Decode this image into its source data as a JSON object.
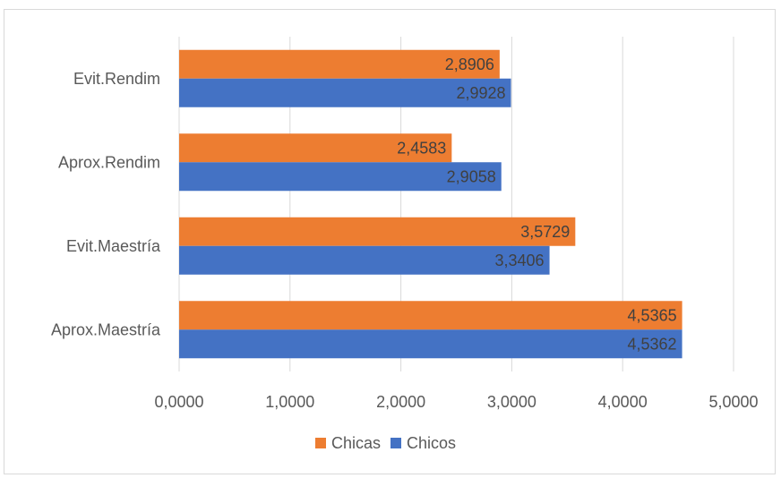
{
  "chart_data": {
    "type": "bar",
    "orientation": "horizontal",
    "categories": [
      "Evit.Rendim",
      "Aprox.Rendim",
      "Evit.Maestría",
      "Aprox.Maestría"
    ],
    "series": [
      {
        "name": "Chicas",
        "color": "#ED7D31",
        "values": [
          2.8906,
          2.4583,
          3.5729,
          4.5365
        ],
        "labels": [
          "2,8906",
          "2,4583",
          "3,5729",
          "4,5365"
        ]
      },
      {
        "name": "Chicos",
        "color": "#4472C4",
        "values": [
          2.9928,
          2.9058,
          3.3406,
          4.5362
        ],
        "labels": [
          "2,9928",
          "2,9058",
          "3,3406",
          "4,5362"
        ]
      }
    ],
    "xlim": [
      0,
      5
    ],
    "x_ticks": [
      0,
      1,
      2,
      3,
      4,
      5
    ],
    "x_tick_labels": [
      "0,0000",
      "1,0000",
      "2,0000",
      "3,0000",
      "4,0000",
      "5,0000"
    ],
    "grid": "vertical",
    "legend_position": "bottom"
  }
}
